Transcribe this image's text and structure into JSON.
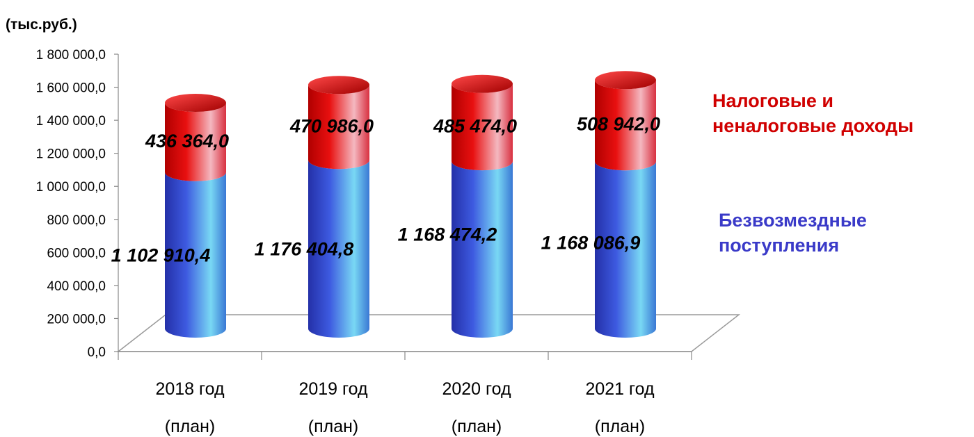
{
  "chart_data": {
    "type": "bar",
    "stacked": true,
    "style": "3d-cylinder",
    "ylabel": "(тыс.руб.)",
    "ylim": [
      0,
      1800000
    ],
    "yticks": [
      "0,0",
      "200 000,0",
      "400 000,0",
      "600 000,0",
      "800 000,0",
      "1 000 000,0",
      "1 200 000,0",
      "1 400 000,0",
      "1 600 000,0",
      "1 800 000,0"
    ],
    "categories": [
      {
        "line1": "2018 год",
        "line2": "(план)"
      },
      {
        "line1": "2019 год",
        "line2": "(план)"
      },
      {
        "line1": "2020 год",
        "line2": "(план)"
      },
      {
        "line1": "2021 год",
        "line2": "(план)"
      }
    ],
    "legend_position": "right",
    "series": [
      {
        "name": "Безвозмездные поступления",
        "legend_lines": [
          "Безвозмездные",
          "поступления"
        ],
        "color": "#3a4fd8",
        "values": [
          1102910.4,
          1176404.8,
          1168474.2,
          1168086.9
        ],
        "labels": [
          "1 102 910,4",
          "1 176 404,8",
          "1 168 474,2",
          "1 168 086,9"
        ]
      },
      {
        "name": "Налоговые и неналоговые доходы",
        "legend_lines": [
          "Налоговые и",
          "неналоговые доходы"
        ],
        "color": "#e00000",
        "values": [
          436364.0,
          470986.0,
          485474.0,
          508942.0
        ],
        "labels": [
          "436 364,0",
          "470 986,0",
          "485 474,0",
          "508 942,0"
        ]
      }
    ]
  }
}
